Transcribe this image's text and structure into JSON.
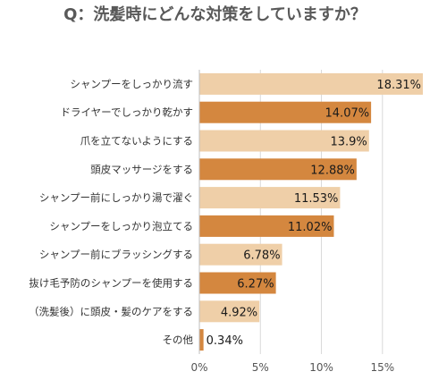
{
  "chart_data": {
    "type": "bar",
    "orientation": "horizontal",
    "title": "Q：洗髪時にどんな対策をしていますか？",
    "categories": [
      "シャンプーをしっかり流す",
      "ドライヤーでしっかり乾かす",
      "爪を立てないようにする",
      "頭皮マッサージをする",
      "シャンプー前にしっかり湯で濯ぐ",
      "シャンプーをしっかり泡立てる",
      "シャンプー前にブラッシングする",
      "抜け毛予防のシャンプーを使用する",
      "（洗髪後）に頭皮・髪のケアをする",
      "その他"
    ],
    "values": [
      18.31,
      14.07,
      13.9,
      12.88,
      11.53,
      11.02,
      6.78,
      6.27,
      4.92,
      0.34
    ],
    "value_labels": [
      "18.31%",
      "14.07%",
      "13.9%",
      "12.88%",
      "11.53%",
      "11.02%",
      "6.78%",
      "6.27%",
      "4.92%",
      "0.34%"
    ],
    "xlim": [
      0,
      18.31
    ],
    "xticks": [
      0,
      5,
      10,
      15
    ],
    "xtick_labels": [
      "0%",
      "5%",
      "10%",
      "15%"
    ],
    "grid": true,
    "colors": {
      "light": "#efcfa8",
      "dark": "#d4873f",
      "grid": "#d9d9d9",
      "axis": "#bfbfbf"
    },
    "bar_color_pattern": [
      "light",
      "dark",
      "light",
      "dark",
      "light",
      "dark",
      "light",
      "dark",
      "light",
      "dark"
    ]
  }
}
